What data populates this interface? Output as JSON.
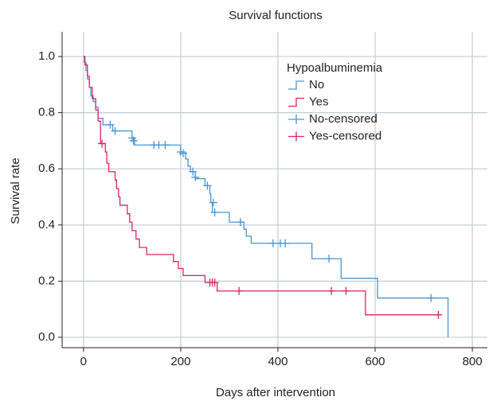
{
  "chart_data": {
    "type": "step",
    "title": "Survival functions",
    "x_label": "Days after intervention",
    "y_label": "Survival rate",
    "legend_title": "Hypoalbuminemia",
    "legend_position": "upper right",
    "grid": true,
    "xlim": [
      -44,
      831
    ],
    "ylim": [
      -0.037,
      1.088
    ],
    "xticks": [
      0,
      200,
      400,
      600,
      800
    ],
    "yticks": [
      {
        "value": 0,
        "label": "0.0"
      },
      {
        "value": 0.2,
        "label": "0.2"
      },
      {
        "value": 0.4,
        "label": "0.4"
      },
      {
        "value": 0.6,
        "label": "0.6"
      },
      {
        "value": 0.8,
        "label": "0.8"
      },
      {
        "value": 1,
        "label": "1.0"
      }
    ],
    "series": [
      {
        "name": "No",
        "color": "#4a94d4",
        "marker": "step",
        "x": [
          0,
          2,
          5,
          8,
          12,
          15,
          20,
          25,
          30,
          40,
          60,
          100,
          105,
          200,
          210,
          215,
          220,
          230,
          250,
          260,
          262,
          265,
          300,
          330,
          335,
          345,
          470,
          530,
          605,
          750
        ],
        "values": [
          1.0,
          0.98,
          0.95,
          0.92,
          0.89,
          0.86,
          0.84,
          0.82,
          0.78,
          0.757,
          0.735,
          0.71,
          0.685,
          0.66,
          0.635,
          0.61,
          0.59,
          0.565,
          0.54,
          0.51,
          0.48,
          0.445,
          0.41,
          0.385,
          0.36,
          0.335,
          0.28,
          0.21,
          0.14,
          0.0
        ]
      },
      {
        "name": "Yes",
        "color": "#e0245e",
        "marker": "step",
        "x": [
          0,
          3,
          8,
          12,
          18,
          25,
          30,
          35,
          45,
          48,
          52,
          65,
          68,
          72,
          75,
          90,
          95,
          100,
          108,
          115,
          130,
          185,
          195,
          205,
          250,
          275,
          580,
          730
        ],
        "values": [
          1.0,
          0.97,
          0.93,
          0.89,
          0.85,
          0.81,
          0.77,
          0.69,
          0.66,
          0.62,
          0.59,
          0.56,
          0.53,
          0.5,
          0.47,
          0.44,
          0.41,
          0.38,
          0.35,
          0.32,
          0.295,
          0.27,
          0.245,
          0.22,
          0.195,
          0.165,
          0.08,
          0.08
        ]
      },
      {
        "name": "No-censored",
        "color": "#4a94d4",
        "marker": "+",
        "x": [
          55,
          65,
          100,
          103,
          145,
          155,
          168,
          200,
          205,
          225,
          230,
          255,
          267,
          270,
          323,
          390,
          405,
          415,
          505,
          715
        ],
        "values": [
          0.757,
          0.735,
          0.71,
          0.7,
          0.685,
          0.685,
          0.685,
          0.66,
          0.655,
          0.59,
          0.57,
          0.54,
          0.48,
          0.445,
          0.41,
          0.335,
          0.335,
          0.335,
          0.28,
          0.14
        ]
      },
      {
        "name": "Yes-censored",
        "color": "#e0245e",
        "marker": "+",
        "x": [
          38,
          260,
          265,
          270,
          320,
          510,
          540,
          730
        ],
        "values": [
          0.69,
          0.195,
          0.195,
          0.195,
          0.165,
          0.165,
          0.165,
          0.08
        ]
      }
    ]
  }
}
